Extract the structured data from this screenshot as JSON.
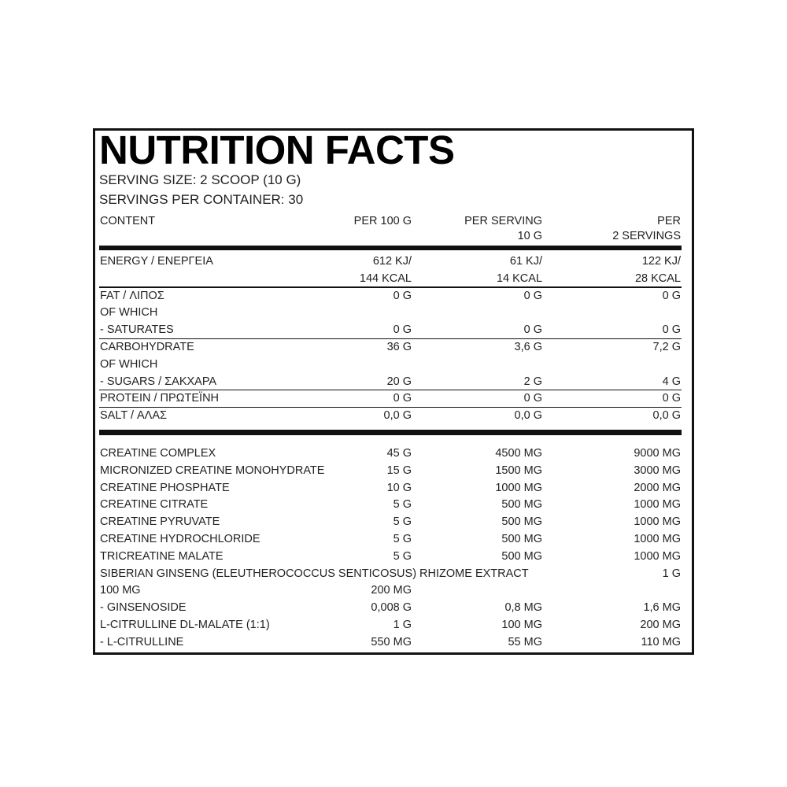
{
  "header": {
    "title": "NUTRITION FACTS",
    "serving_size": "SERVING SIZE: 2 SCOOP (10 G)",
    "servings_per_container": "SERVINGS PER CONTAINER: 30"
  },
  "table": {
    "columns": [
      [
        "CONTENT"
      ],
      [
        "PER 100 G"
      ],
      [
        "PER SERVING",
        "10 G"
      ],
      [
        "PER",
        "2 SERVINGS"
      ]
    ],
    "nutrients": [
      [
        [
          "ENERGY / ΕΝΕΡΓΕΙΑ",
          "612 KJ/",
          "61 KJ/",
          "122 KJ/"
        ],
        [
          null,
          "144 KCAL",
          "14 KCAL",
          "28 KCAL"
        ]
      ],
      [
        [
          "FAT / ΛΙΠΟΣ",
          "0 G",
          "0 G",
          "0 G"
        ],
        [
          "OF WHICH",
          null,
          null,
          null
        ],
        [
          "- SATURATES",
          "0 G",
          "0 G",
          "0 G"
        ]
      ],
      [
        [
          "CARBOHYDRATE",
          "36 G",
          "3,6 G",
          "7,2 G"
        ],
        [
          "OF WHICH",
          null,
          null,
          null
        ],
        [
          "- SUGARS / ΣΑΚΧΑΡΑ",
          "20 G",
          "2 G",
          "4 G"
        ]
      ],
      [
        [
          "PROTEIN / ΠΡΩΤΕΪΝΗ",
          "0 G",
          "0 G",
          "0 G"
        ]
      ],
      [
        [
          "SALT / ΑΛΑΣ",
          "0,0 G",
          "0,0 G",
          "0,0 G"
        ]
      ]
    ],
    "ingredients": [
      [
        "CREATINE COMPLEX",
        "45 G",
        "4500 MG",
        "9000 MG"
      ],
      [
        "MICRONIZED CREATINE MONOHYDRATE",
        "15 G",
        "1500 MG",
        "3000 MG"
      ],
      [
        "CREATINE PHOSPHATE",
        "10 G",
        "1000 MG",
        "2000 MG"
      ],
      [
        "CREATINE CITRATE",
        "5 G",
        "500 MG",
        "1000 MG"
      ],
      [
        "CREATINE PYRUVATE",
        "5 G",
        "500 MG",
        "1000 MG"
      ],
      [
        "CREATINE HYDROCHLORIDE",
        "5 G",
        "500 MG",
        "1000 MG"
      ],
      [
        "TRICREATINE MALATE",
        "5 G",
        "500 MG",
        "1000 MG"
      ],
      [
        "SIBERIAN GINSENG (ELEUTHEROCOCCUS SENTICOSUS) RHIZOME EXTRACT",
        null,
        null,
        "1 G"
      ],
      [
        "100 MG",
        "200 MG",
        null,
        null
      ],
      [
        "- GINSENOSIDE",
        "0,008 G",
        "0,8 MG",
        "1,6 MG"
      ],
      [
        "L-CITRULLINE DL-MALATE (1:1)",
        "1 G",
        "100 MG",
        "200 MG"
      ],
      [
        "- L-CITRULLINE",
        "550 MG",
        "55 MG",
        "110 MG"
      ]
    ]
  }
}
